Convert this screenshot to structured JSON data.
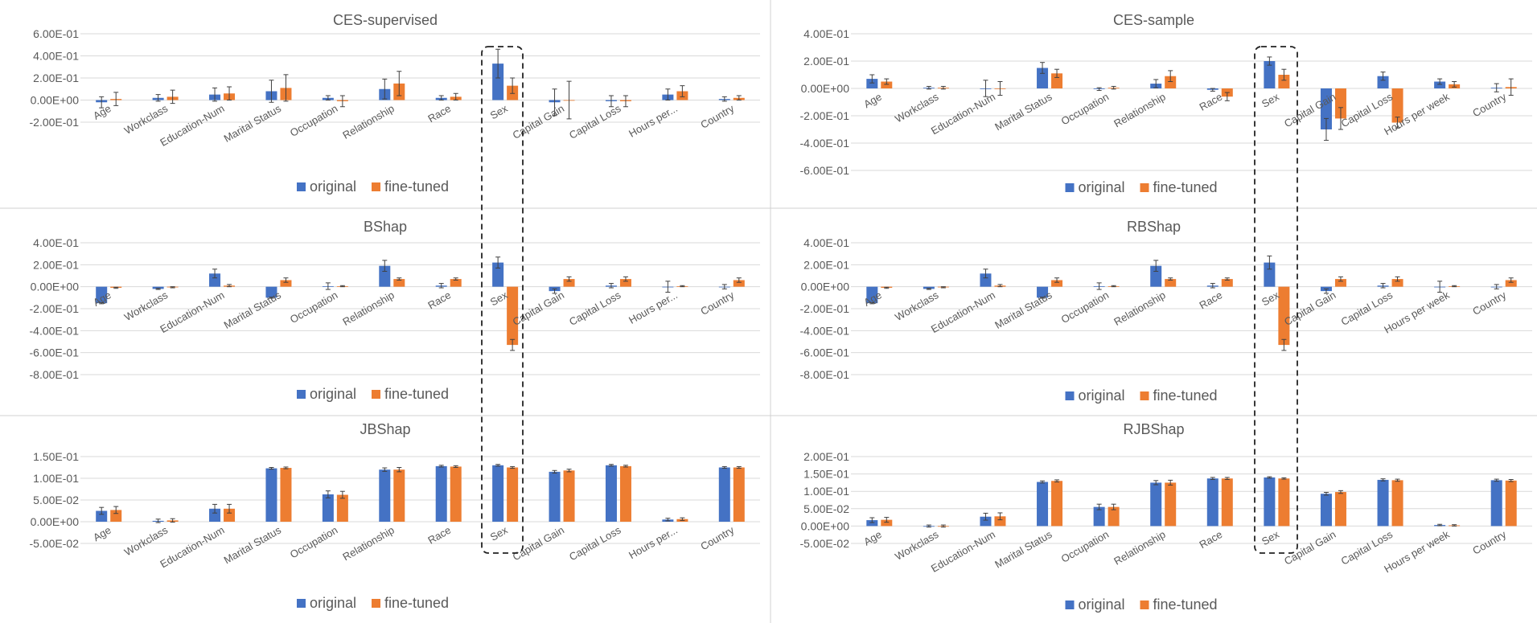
{
  "colors": {
    "original": "#4472C4",
    "fine_tuned": "#ED7D31",
    "grid": "#D9D9D9",
    "text": "#595959",
    "frame": "#D0D0D0"
  },
  "chart_data": [
    {
      "id": "ces-supervised",
      "type": "bar",
      "title": "CES-supervised",
      "categories": [
        "Age",
        "Workclass",
        "Education-Num",
        "Marital Status",
        "Occupation",
        "Relationship",
        "Race",
        "Sex",
        "Capital Gain",
        "Capital Loss",
        "Hours per...",
        "Country"
      ],
      "ytick_labels": [
        "6.00E-01",
        "4.00E-01",
        "2.00E-01",
        "0.00E+00",
        "-2.00E-01"
      ],
      "ytick_values": [
        0.6,
        0.4,
        0.2,
        0,
        -0.2
      ],
      "ylim": [
        -0.2,
        0.6
      ],
      "series": [
        {
          "name": "original",
          "values": [
            -0.02,
            0.02,
            0.05,
            0.08,
            0.02,
            0.1,
            0.02,
            0.33,
            -0.02,
            -0.01,
            0.05,
            0.01
          ],
          "errors": [
            0.05,
            0.03,
            0.06,
            0.1,
            0.02,
            0.09,
            0.02,
            0.13,
            0.12,
            0.05,
            0.05,
            0.02
          ]
        },
        {
          "name": "fine-tuned",
          "values": [
            0.01,
            0.03,
            0.06,
            0.11,
            -0.01,
            0.15,
            0.03,
            0.13,
            0.0,
            -0.01,
            0.08,
            0.02
          ],
          "errors": [
            0.06,
            0.06,
            0.06,
            0.12,
            0.05,
            0.11,
            0.03,
            0.07,
            0.17,
            0.05,
            0.05,
            0.02
          ]
        }
      ],
      "legend": [
        "original",
        "fine-tuned"
      ]
    },
    {
      "id": "ces-sample",
      "type": "bar",
      "title": "CES-sample",
      "categories": [
        "Age",
        "Workclass",
        "Education-Num",
        "Marital Status",
        "Occupation",
        "Relationship",
        "Race",
        "Sex",
        "Capital Gain",
        "Capital Loss",
        "Hours per week",
        "Country"
      ],
      "ytick_labels": [
        "4.00E-01",
        "2.00E-01",
        "0.00E+00",
        "-2.00E-01",
        "-4.00E-01",
        "-6.00E-01"
      ],
      "ytick_values": [
        0.4,
        0.2,
        0,
        -0.2,
        -0.4,
        -0.6
      ],
      "ylim": [
        -0.6,
        0.4
      ],
      "series": [
        {
          "name": "original",
          "values": [
            0.07,
            0.005,
            0.0,
            0.15,
            -0.005,
            0.035,
            -0.01,
            0.2,
            -0.3,
            0.09,
            0.05,
            0.005
          ],
          "errors": [
            0.03,
            0.01,
            0.06,
            0.04,
            0.01,
            0.03,
            0.01,
            0.03,
            0.08,
            0.03,
            0.02,
            0.03
          ]
        },
        {
          "name": "fine-tuned",
          "values": [
            0.05,
            0.005,
            0.0,
            0.11,
            0.005,
            0.09,
            -0.06,
            0.1,
            -0.22,
            -0.25,
            0.03,
            0.01
          ],
          "errors": [
            0.02,
            0.01,
            0.05,
            0.03,
            0.01,
            0.04,
            0.03,
            0.04,
            0.08,
            0.04,
            0.02,
            0.06
          ]
        }
      ],
      "legend": [
        "original",
        "fine-tuned"
      ]
    },
    {
      "id": "bshap",
      "type": "bar",
      "title": "BShap",
      "categories": [
        "Age",
        "Workclass",
        "Education-Num",
        "Marital Status",
        "Occupation",
        "Relationship",
        "Race",
        "Sex",
        "Capital Gain",
        "Capital Loss",
        "Hours per...",
        "Country"
      ],
      "ytick_labels": [
        "4.00E-01",
        "2.00E-01",
        "0.00E+00",
        "-2.00E-01",
        "-4.00E-01",
        "-6.00E-01",
        "-8.00E-01"
      ],
      "ytick_values": [
        0.4,
        0.2,
        0,
        -0.2,
        -0.4,
        -0.6,
        -0.8
      ],
      "ylim": [
        -0.8,
        0.4
      ],
      "series": [
        {
          "name": "original",
          "values": [
            -0.15,
            -0.02,
            0.12,
            -0.1,
            0.005,
            0.19,
            0.01,
            0.22,
            -0.04,
            0.01,
            0.0,
            0.0
          ],
          "errors": [
            0.005,
            0.005,
            0.04,
            0.005,
            0.03,
            0.05,
            0.02,
            0.05,
            0.02,
            0.02,
            0.05,
            0.02
          ]
        },
        {
          "name": "fine-tuned",
          "values": [
            -0.01,
            -0.005,
            0.01,
            0.06,
            0.005,
            0.07,
            0.07,
            -0.53,
            0.07,
            0.07,
            0.005,
            0.06
          ],
          "errors": [
            0.005,
            0.005,
            0.01,
            0.02,
            0.005,
            0.01,
            0.01,
            0.05,
            0.02,
            0.02,
            0.005,
            0.02
          ]
        }
      ],
      "legend": [
        "original",
        "fine-tuned"
      ]
    },
    {
      "id": "rbshap",
      "type": "bar",
      "title": "RBShap",
      "categories": [
        "Age",
        "Workclass",
        "Education-Num",
        "Marital Status",
        "Occupation",
        "Relationship",
        "Race",
        "Sex",
        "Capital Gain",
        "Capital Loss",
        "Hours per week",
        "Country"
      ],
      "ytick_labels": [
        "4.00E-01",
        "2.00E-01",
        "0.00E+00",
        "-2.00E-01",
        "-4.00E-01",
        "-6.00E-01",
        "-8.00E-01"
      ],
      "ytick_values": [
        0.4,
        0.2,
        0,
        -0.2,
        -0.4,
        -0.6,
        -0.8
      ],
      "ylim": [
        -0.8,
        0.4
      ],
      "series": [
        {
          "name": "original",
          "values": [
            -0.15,
            -0.02,
            0.12,
            -0.1,
            0.005,
            0.19,
            0.01,
            0.22,
            -0.04,
            0.01,
            0.0,
            0.0
          ],
          "errors": [
            0.005,
            0.005,
            0.04,
            0.005,
            0.03,
            0.05,
            0.02,
            0.06,
            0.02,
            0.02,
            0.05,
            0.02
          ]
        },
        {
          "name": "fine-tuned",
          "values": [
            -0.01,
            -0.005,
            0.01,
            0.06,
            0.005,
            0.07,
            0.07,
            -0.53,
            0.07,
            0.07,
            0.005,
            0.06
          ],
          "errors": [
            0.005,
            0.005,
            0.01,
            0.02,
            0.005,
            0.01,
            0.01,
            0.05,
            0.02,
            0.02,
            0.005,
            0.02
          ]
        }
      ],
      "legend": [
        "original",
        "fine-tuned"
      ]
    },
    {
      "id": "jbshap",
      "type": "bar",
      "title": "JBShap",
      "categories": [
        "Age",
        "Workclass",
        "Education-Num",
        "Marital Status",
        "Occupation",
        "Relationship",
        "Race",
        "Sex",
        "Capital Gain",
        "Capital Loss",
        "Hours per...",
        "Country"
      ],
      "ytick_labels": [
        "1.50E-01",
        "1.00E-01",
        "5.00E-02",
        "0.00E+00",
        "-5.00E-02"
      ],
      "ytick_values": [
        0.15,
        0.1,
        0.05,
        0,
        -0.05
      ],
      "ylim": [
        -0.05,
        0.15
      ],
      "series": [
        {
          "name": "original",
          "values": [
            0.025,
            0.002,
            0.03,
            0.123,
            0.063,
            0.12,
            0.128,
            0.13,
            0.115,
            0.13,
            0.005,
            0.125
          ],
          "errors": [
            0.008,
            0.004,
            0.01,
            0.002,
            0.008,
            0.004,
            0.002,
            0.002,
            0.003,
            0.002,
            0.003,
            0.002
          ]
        },
        {
          "name": "fine-tuned",
          "values": [
            0.027,
            0.003,
            0.03,
            0.124,
            0.062,
            0.12,
            0.127,
            0.125,
            0.118,
            0.128,
            0.006,
            0.125
          ],
          "errors": [
            0.008,
            0.004,
            0.01,
            0.002,
            0.008,
            0.005,
            0.002,
            0.002,
            0.003,
            0.002,
            0.003,
            0.002
          ]
        }
      ],
      "legend": [
        "original",
        "fine-tuned"
      ]
    },
    {
      "id": "rjbshap",
      "type": "bar",
      "title": "RJBShap",
      "categories": [
        "Age",
        "Workclass",
        "Education-Num",
        "Marital Status",
        "Occupation",
        "Relationship",
        "Race",
        "Sex",
        "Capital Gain",
        "Capital Loss",
        "Hours per week",
        "Country"
      ],
      "ytick_labels": [
        "2.00E-01",
        "1.50E-01",
        "1.00E-01",
        "5.00E-02",
        "0.00E+00",
        "-5.00E-02"
      ],
      "ytick_values": [
        0.2,
        0.15,
        0.1,
        0.05,
        0,
        -0.05
      ],
      "ylim": [
        -0.05,
        0.2
      ],
      "series": [
        {
          "name": "original",
          "values": [
            0.017,
            0.0,
            0.027,
            0.127,
            0.055,
            0.125,
            0.137,
            0.14,
            0.093,
            0.133,
            0.003,
            0.132
          ],
          "errors": [
            0.007,
            0.003,
            0.01,
            0.003,
            0.008,
            0.006,
            0.003,
            0.002,
            0.004,
            0.003,
            0.002,
            0.003
          ]
        },
        {
          "name": "fine-tuned",
          "values": [
            0.018,
            0.0,
            0.028,
            0.13,
            0.055,
            0.125,
            0.137,
            0.137,
            0.098,
            0.132,
            0.002,
            0.131
          ],
          "errors": [
            0.007,
            0.003,
            0.01,
            0.003,
            0.008,
            0.007,
            0.003,
            0.002,
            0.004,
            0.003,
            0.002,
            0.003
          ]
        }
      ],
      "legend": [
        "original",
        "fine-tuned"
      ]
    }
  ]
}
